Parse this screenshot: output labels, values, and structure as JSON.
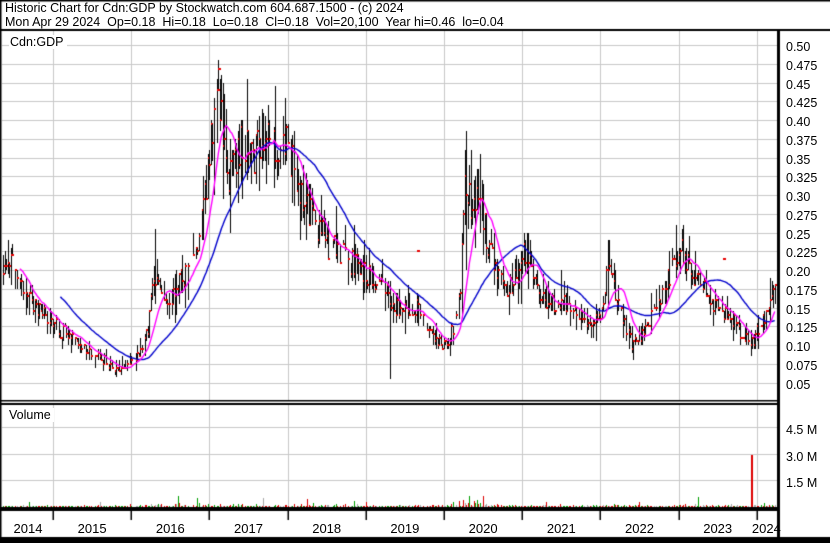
{
  "header": {
    "line1": "Historic Chart for Cdn:GDP by Stockwatch.com 604.687.1500 - (c) 2024",
    "line2": "Mon Apr 29 2024  Op=0.18  Hi=0.18  Lo=0.18  Cl=0.18  Vol=20,100  Year hi=0.46  lo=0.04"
  },
  "panel_labels": {
    "symbol": "Cdn:GDP",
    "volume": "Volume"
  },
  "colors": {
    "background": "#FFFFFF",
    "border": "#000000",
    "grid": "#C8C8C8",
    "bar": "#000000",
    "close_tick": "#E80000",
    "ma_short": "#FF00FF",
    "ma_long": "#0000CC",
    "vol_up": "#00A000",
    "vol_down": "#DD0000",
    "vol_neutral": "#A8A8A8"
  },
  "chart_data": {
    "type": "ohlc",
    "title": "Historic Chart for Cdn:GDP",
    "frequency": "weekly",
    "x_range": [
      2014.345,
      2024.245
    ],
    "x_year_labels": [
      "2014",
      "2015",
      "2016",
      "2017",
      "2018",
      "2019",
      "2020",
      "2021",
      "2022",
      "2023",
      "2024"
    ],
    "price_ticks": [
      "0.50",
      "0.475",
      "0.45",
      "0.425",
      "0.40",
      "0.375",
      "0.35",
      "0.325",
      "0.30",
      "0.275",
      "0.25",
      "0.225",
      "0.20",
      "0.175",
      "0.15",
      "0.125",
      "0.10",
      "0.075",
      "0.05"
    ],
    "volume_ticks": [
      "4.5 M",
      "3.0 M",
      "1.5 M"
    ],
    "volume_tick_values_m": [
      4.5,
      3.0,
      1.5
    ],
    "stats": {
      "date": "Mon Apr 29 2024",
      "open": 0.18,
      "high": 0.18,
      "low": 0.18,
      "close": 0.18,
      "volume": "20,100",
      "year_high": 0.46,
      "year_low": 0.04
    },
    "close_anchors": [
      [
        2014.345,
        0.205
      ],
      [
        2014.45,
        0.215
      ],
      [
        2014.6,
        0.175
      ],
      [
        2014.75,
        0.155
      ],
      [
        2014.9,
        0.14
      ],
      [
        2015.05,
        0.125
      ],
      [
        2015.2,
        0.11
      ],
      [
        2015.35,
        0.1
      ],
      [
        2015.5,
        0.09
      ],
      [
        2015.65,
        0.08
      ],
      [
        2015.8,
        0.068
      ],
      [
        2015.95,
        0.075
      ],
      [
        2016.1,
        0.09
      ],
      [
        2016.22,
        0.13
      ],
      [
        2016.3,
        0.2
      ],
      [
        2016.4,
        0.16
      ],
      [
        2016.5,
        0.165
      ],
      [
        2016.65,
        0.19
      ],
      [
        2016.8,
        0.215
      ],
      [
        2016.9,
        0.26
      ],
      [
        2017.0,
        0.36
      ],
      [
        2017.08,
        0.42
      ],
      [
        2017.15,
        0.4
      ],
      [
        2017.25,
        0.325
      ],
      [
        2017.35,
        0.35
      ],
      [
        2017.45,
        0.37
      ],
      [
        2017.55,
        0.34
      ],
      [
        2017.65,
        0.375
      ],
      [
        2017.75,
        0.385
      ],
      [
        2017.85,
        0.36
      ],
      [
        2017.95,
        0.375
      ],
      [
        2018.05,
        0.34
      ],
      [
        2018.15,
        0.315
      ],
      [
        2018.25,
        0.285
      ],
      [
        2018.35,
        0.26
      ],
      [
        2018.5,
        0.235
      ],
      [
        2018.65,
        0.225
      ],
      [
        2018.8,
        0.21
      ],
      [
        2018.95,
        0.2
      ],
      [
        2019.1,
        0.185
      ],
      [
        2019.25,
        0.17
      ],
      [
        2019.35,
        0.155
      ],
      [
        2019.5,
        0.145
      ],
      [
        2019.65,
        0.15
      ],
      [
        2019.8,
        0.12
      ],
      [
        2019.9,
        0.105
      ],
      [
        2020.0,
        0.1
      ],
      [
        2020.1,
        0.115
      ],
      [
        2020.2,
        0.16
      ],
      [
        2020.28,
        0.33
      ],
      [
        2020.36,
        0.27
      ],
      [
        2020.45,
        0.3
      ],
      [
        2020.55,
        0.24
      ],
      [
        2020.65,
        0.21
      ],
      [
        2020.75,
        0.18
      ],
      [
        2020.85,
        0.175
      ],
      [
        2020.95,
        0.2
      ],
      [
        2021.03,
        0.225
      ],
      [
        2021.12,
        0.2
      ],
      [
        2021.25,
        0.165
      ],
      [
        2021.4,
        0.15
      ],
      [
        2021.5,
        0.16
      ],
      [
        2021.62,
        0.15
      ],
      [
        2021.75,
        0.14
      ],
      [
        2021.88,
        0.12
      ],
      [
        2022.0,
        0.14
      ],
      [
        2022.1,
        0.2
      ],
      [
        2022.2,
        0.165
      ],
      [
        2022.3,
        0.13
      ],
      [
        2022.42,
        0.1
      ],
      [
        2022.55,
        0.115
      ],
      [
        2022.7,
        0.15
      ],
      [
        2022.85,
        0.18
      ],
      [
        2022.95,
        0.215
      ],
      [
        2023.02,
        0.235
      ],
      [
        2023.12,
        0.205
      ],
      [
        2023.22,
        0.19
      ],
      [
        2023.35,
        0.17
      ],
      [
        2023.5,
        0.15
      ],
      [
        2023.65,
        0.135
      ],
      [
        2023.8,
        0.12
      ],
      [
        2023.92,
        0.1
      ],
      [
        2024.0,
        0.115
      ],
      [
        2024.08,
        0.135
      ],
      [
        2024.16,
        0.15
      ],
      [
        2024.24,
        0.175
      ]
    ],
    "range_overrides": [
      [
        2015.8,
        0.08,
        0.057
      ],
      [
        2016.3,
        0.255,
        0.155
      ],
      [
        2017.1,
        0.455,
        0.37
      ],
      [
        2019.3,
        0.185,
        0.055
      ],
      [
        2020.28,
        0.385,
        0.2
      ],
      [
        2020.46,
        0.355,
        0.25
      ],
      [
        2021.02,
        0.25,
        0.205
      ],
      [
        2021.5,
        0.2,
        0.14
      ],
      [
        2022.1,
        0.24,
        0.15
      ],
      [
        2023.92,
        0.12,
        0.085
      ],
      [
        2024.24,
        0.18,
        0.155
      ]
    ],
    "floating_close_marks": [
      [
        2017.12,
        0.468
      ],
      [
        2019.67,
        0.226
      ],
      [
        2023.58,
        0.215
      ]
    ],
    "volume_envelope_m": [
      [
        2014.3,
        0.05
      ],
      [
        2015.5,
        0.05
      ],
      [
        2016.3,
        0.12
      ],
      [
        2016.9,
        0.12
      ],
      [
        2017.5,
        0.1
      ],
      [
        2018.3,
        0.1
      ],
      [
        2019.3,
        0.06
      ],
      [
        2019.95,
        0.1
      ],
      [
        2020.35,
        0.22
      ],
      [
        2020.8,
        0.12
      ],
      [
        2021.5,
        0.07
      ],
      [
        2022.4,
        0.09
      ],
      [
        2023.3,
        0.09
      ],
      [
        2024.2,
        0.07
      ]
    ],
    "volume_spikes": [
      [
        2014.7,
        0.3,
        "up"
      ],
      [
        2015.6,
        0.3,
        "neutral"
      ],
      [
        2016.6,
        0.65,
        "up"
      ],
      [
        2016.85,
        0.5,
        "up"
      ],
      [
        2017.7,
        0.5,
        "neutral"
      ],
      [
        2018.25,
        0.45,
        "down"
      ],
      [
        2018.85,
        0.35,
        "up"
      ],
      [
        2019.0,
        0.28,
        "down"
      ],
      [
        2020.32,
        0.65,
        "up"
      ],
      [
        2020.5,
        0.6,
        "down"
      ],
      [
        2021.3,
        0.3,
        "down"
      ],
      [
        2022.5,
        0.3,
        "down"
      ],
      [
        2023.25,
        0.55,
        "up"
      ],
      [
        2023.93,
        2.95,
        "down"
      ],
      [
        2024.1,
        0.25,
        "up"
      ]
    ],
    "moving_averages": [
      {
        "name": "short",
        "weeks": 13,
        "color_key": "ma_short"
      },
      {
        "name": "long",
        "weeks": 40,
        "color_key": "ma_long"
      }
    ]
  }
}
